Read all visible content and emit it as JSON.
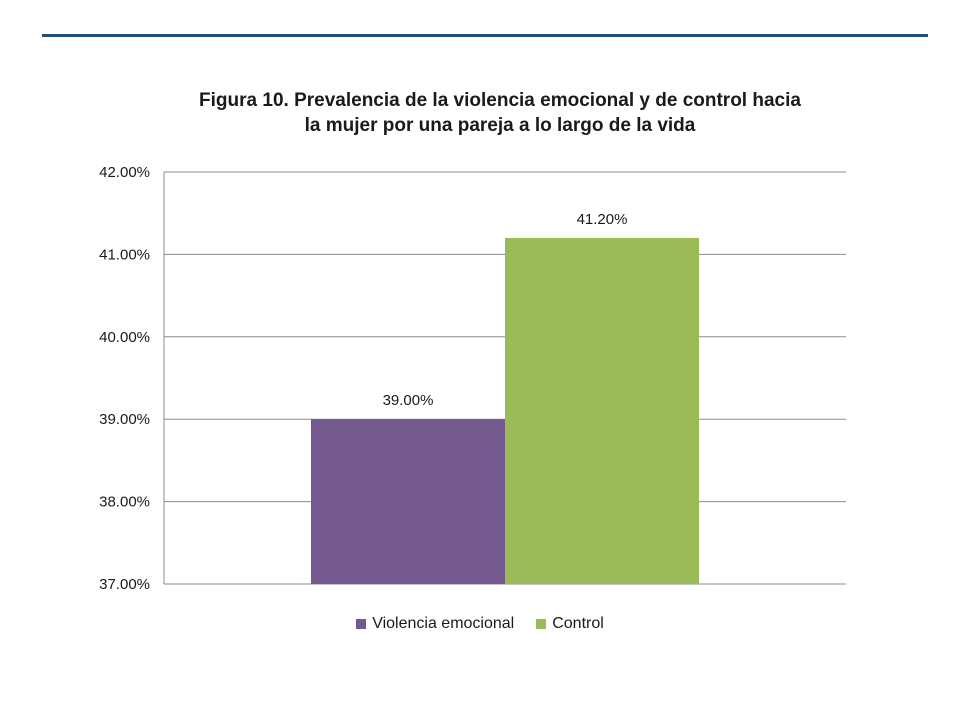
{
  "chart_data": {
    "type": "bar",
    "title_lines": [
      "Figura 10. Prevalencia de la violencia emocional y de control hacia",
      "la mujer por una pareja  a lo largo de la vida"
    ],
    "categories": [
      ""
    ],
    "series": [
      {
        "name": "Violencia emocional",
        "values": [
          39.0
        ],
        "label": "39.00%",
        "color": "#73598e"
      },
      {
        "name": "Control",
        "values": [
          41.2
        ],
        "label": "41.20%",
        "color": "#9bbb59"
      }
    ],
    "ylim": [
      37,
      42
    ],
    "yticks": [
      "37.00%",
      "38.00%",
      "39.00%",
      "40.00%",
      "41.00%",
      "42.00%"
    ],
    "grid": true,
    "legend_position": "bottom"
  }
}
